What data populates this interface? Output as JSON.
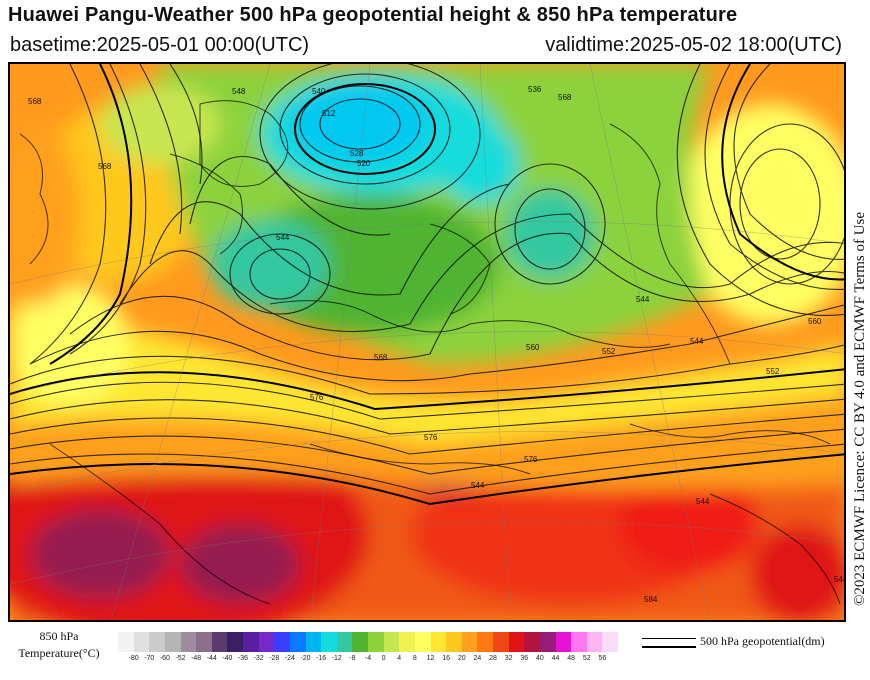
{
  "header": {
    "title": "Huawei Pangu-Weather 500 hPa geopotential height & 850 hPa temperature",
    "basetime": "basetime:2025-05-01 00:00(UTC)",
    "validtime": "validtime:2025-05-02 18:00(UTC)"
  },
  "credit": "©2023 ECMWF Licence: CC BY 4.0 and ECMWF Terms of Use",
  "colorbar": {
    "label_line1": "850 hPa",
    "label_line2": "Temperature(°C)",
    "ticks": [
      "-80",
      "-70",
      "-60",
      "-52",
      "-48",
      "-44",
      "-40",
      "-36",
      "-32",
      "-28",
      "-24",
      "-20",
      "-16",
      "-12",
      "-8",
      "-4",
      "0",
      "4",
      "8",
      "12",
      "16",
      "20",
      "24",
      "28",
      "32",
      "36",
      "40",
      "44",
      "48",
      "52",
      "56"
    ],
    "colors": [
      "#f2f2f2",
      "#e0e0e0",
      "#cccccc",
      "#b4b4b4",
      "#a08ca0",
      "#8c6e8c",
      "#5a3a6e",
      "#3c1e64",
      "#5a1ea0",
      "#7828c8",
      "#3c3cff",
      "#0a78ff",
      "#00b4f0",
      "#14dcdc",
      "#32c8a0",
      "#50b432",
      "#8cd23c",
      "#c8e650",
      "#f0f050",
      "#ffff64",
      "#ffe632",
      "#ffc81e",
      "#ffa01e",
      "#ff7814",
      "#f04614",
      "#e01414",
      "#b4143c",
      "#961e78",
      "#e614d2",
      "#ff78f0",
      "#ffb4f5",
      "#fadcf8"
    ]
  },
  "legend": {
    "label": "500 hPa geopotential(dm)"
  },
  "map": {
    "contour_labels": [
      "568",
      "568",
      "548",
      "540",
      "512",
      "528",
      "520",
      "544",
      "552",
      "544",
      "568",
      "560",
      "576",
      "536",
      "568",
      "544",
      "552",
      "560",
      "576",
      "544",
      "544",
      "544",
      "584",
      "576"
    ]
  }
}
